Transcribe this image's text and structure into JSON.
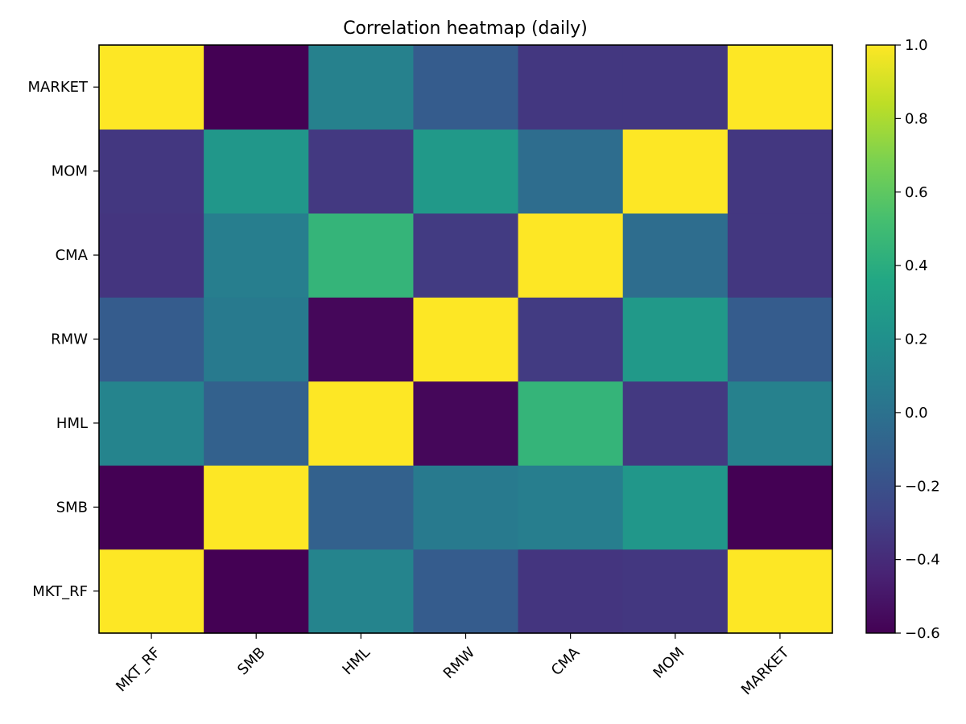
{
  "chart_data": {
    "type": "heatmap",
    "title": "Correlation heatmap (daily)",
    "colormap": "viridis",
    "x_categories": [
      "MKT_RF",
      "SMB",
      "HML",
      "RMW",
      "CMA",
      "MOM",
      "MARKET"
    ],
    "y_categories": [
      "MKT_RF",
      "SMB",
      "HML",
      "RMW",
      "CMA",
      "MOM",
      "MARKET"
    ],
    "y_axis_origin": "bottom",
    "values": [
      [
        1.0,
        -0.6,
        0.12,
        -0.13,
        -0.35,
        -0.34,
        1.0
      ],
      [
        -0.6,
        1.0,
        -0.1,
        0.05,
        0.08,
        0.25,
        -0.6
      ],
      [
        0.12,
        -0.1,
        1.0,
        -0.57,
        0.45,
        -0.33,
        0.1
      ],
      [
        -0.13,
        0.05,
        -0.57,
        1.0,
        -0.32,
        0.26,
        -0.13
      ],
      [
        -0.35,
        0.08,
        0.45,
        -0.32,
        1.0,
        -0.03,
        -0.34
      ],
      [
        -0.34,
        0.25,
        -0.33,
        0.26,
        -0.03,
        1.0,
        -0.34
      ],
      [
        1.0,
        -0.6,
        0.1,
        -0.13,
        -0.34,
        -0.34,
        1.0
      ]
    ],
    "colorbar": {
      "vmin": -0.6,
      "vmax": 1.0,
      "ticks": [
        1.0,
        0.8,
        0.6,
        0.4,
        0.2,
        0.0,
        -0.2,
        -0.4,
        -0.6
      ],
      "tick_labels": [
        "1.0",
        "0.8",
        "0.6",
        "0.4",
        "0.2",
        "0.0",
        "−0.2",
        "−0.4",
        "−0.6"
      ]
    },
    "grid": false,
    "legend": "colorbar-right"
  }
}
